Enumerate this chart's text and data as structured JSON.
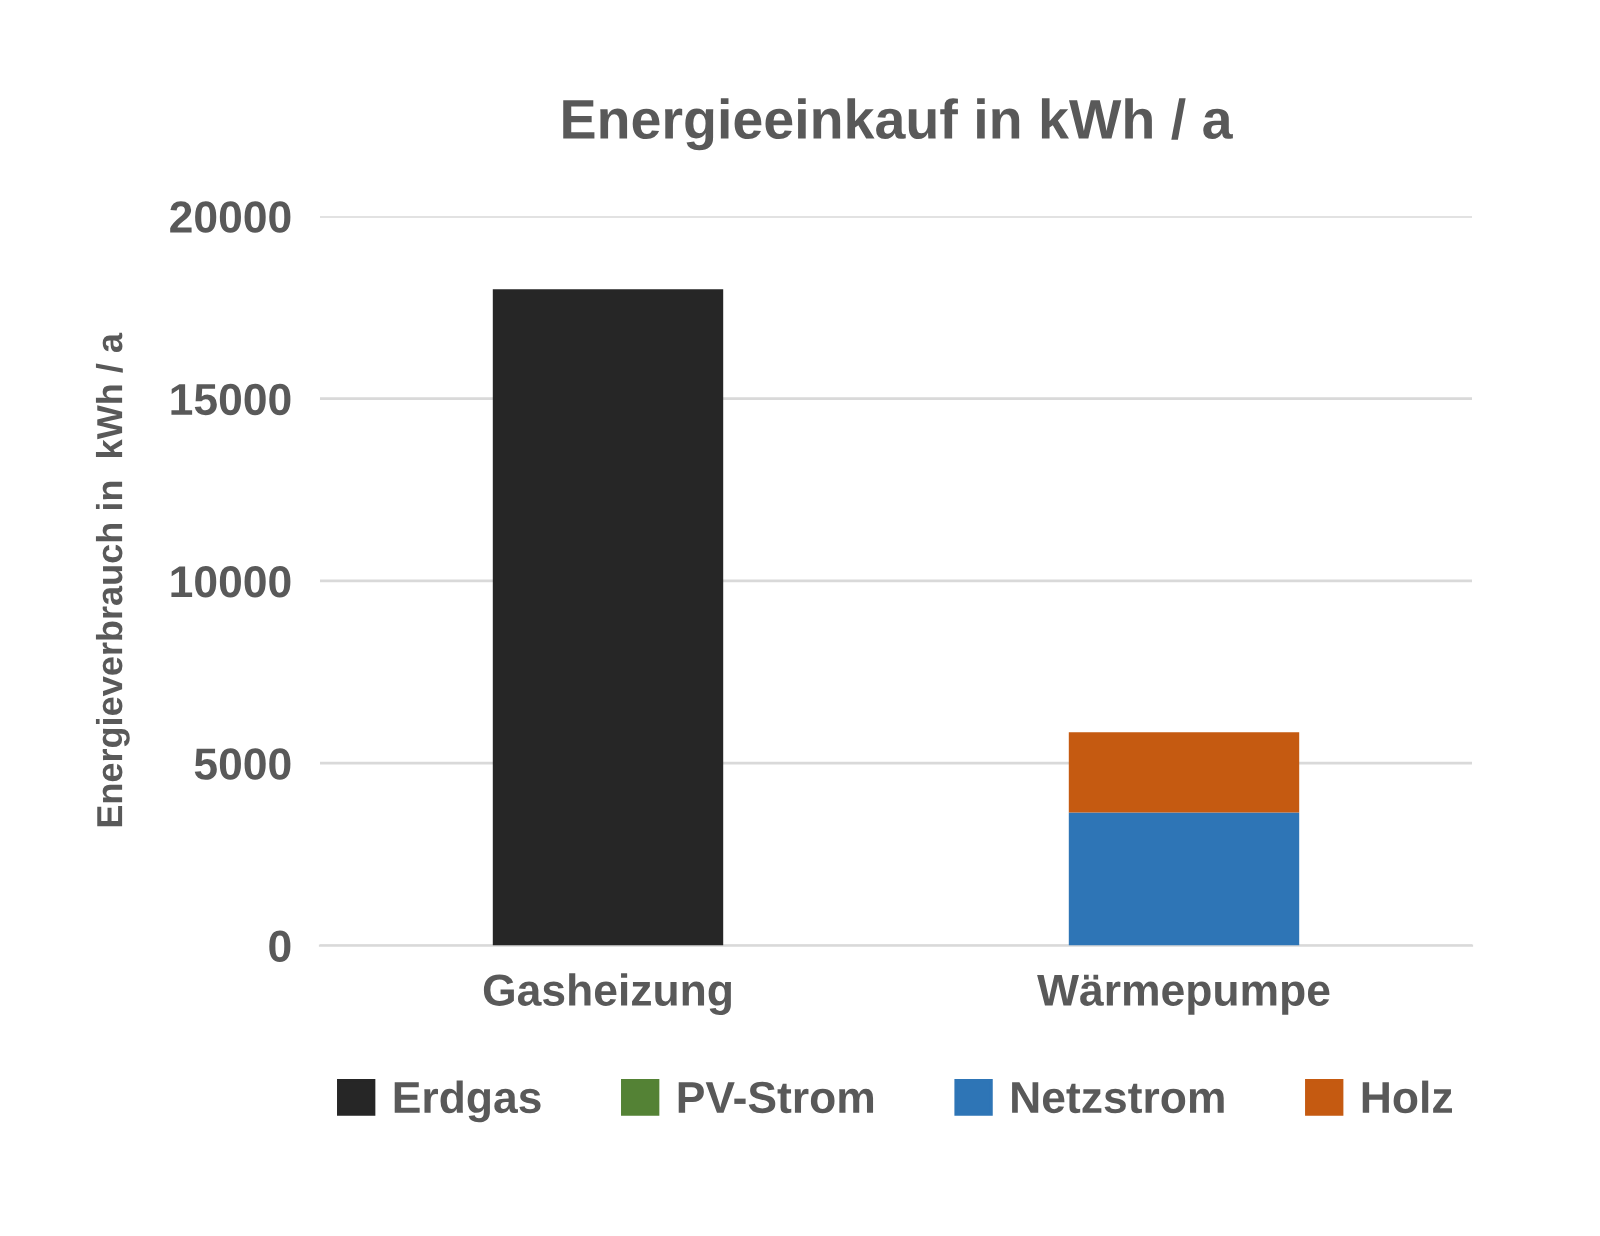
{
  "chart_data": {
    "type": "bar",
    "title": "Energieeinkauf in kWh / a",
    "ylabel": "Energieverbrauch in  kWh / a",
    "categories": [
      "Gasheizung",
      "Wärmepumpe"
    ],
    "series": [
      {
        "name": "Erdgas",
        "color": "#262626",
        "values": [
          18000,
          0
        ]
      },
      {
        "name": "PV-Strom",
        "color": "#548235",
        "values": [
          0,
          0
        ]
      },
      {
        "name": "Netzstrom",
        "color": "#2e75b6",
        "values": [
          0,
          3650
        ]
      },
      {
        "name": "Holz",
        "color": "#c55a11",
        "values": [
          0,
          2200
        ]
      }
    ],
    "stacked": true,
    "ylim": [
      0,
      20000
    ],
    "yticks": [
      0,
      5000,
      10000,
      15000,
      20000
    ],
    "grid": "y",
    "legend": "bottom"
  }
}
